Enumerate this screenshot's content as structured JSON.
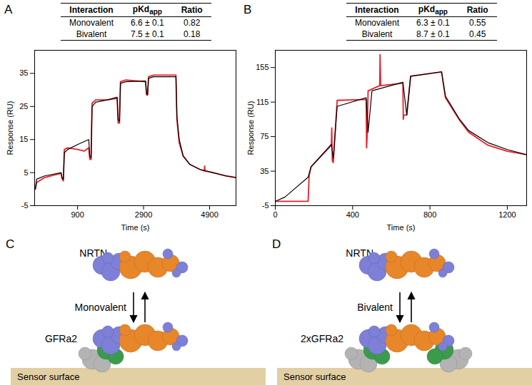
{
  "chart_data": [
    {
      "type": "line",
      "panel": "A",
      "table": {
        "columns": [
          "Interaction",
          {
            "text": "pKd",
            "subscript": "app"
          },
          "Ratio"
        ],
        "rows": [
          [
            "Monovalent",
            "6.6 ± 0.1",
            "0.82"
          ],
          [
            "Bivalent",
            "7.5 ± 0.1",
            "0.18"
          ]
        ]
      },
      "x_label": "Time (s)",
      "y_label": "Response (RU)",
      "xlim": [
        -400,
        5700
      ],
      "xticks": [
        900,
        2900,
        4900
      ],
      "ylim": [
        -5,
        42
      ],
      "yticks": [
        -5,
        5,
        15,
        25,
        35
      ],
      "grid": false,
      "series": [
        {
          "color": "#e8202a",
          "x": [
            -380,
            -340,
            -100,
            200,
            400,
            430,
            470,
            500,
            600,
            900,
            1100,
            1240,
            1270,
            1310,
            1340,
            1450,
            1800,
            2100,
            2130,
            2170,
            2200,
            2350,
            2960,
            2990,
            3020,
            3050,
            3200,
            3880,
            3910,
            3980,
            4100,
            4300,
            4600,
            4740,
            4750,
            4760,
            5000,
            5400,
            5700
          ],
          "values": [
            0,
            2,
            3.5,
            4.3,
            4.8,
            3.2,
            2.5,
            12,
            12.5,
            12,
            11.5,
            12.5,
            9,
            9,
            26,
            27,
            27,
            27.5,
            20,
            20,
            32.5,
            33,
            32.5,
            28.5,
            28.5,
            34,
            34.5,
            34.5,
            21,
            14,
            10,
            7.5,
            6,
            5.5,
            7,
            5.5,
            5,
            4,
            3.5
          ]
        },
        {
          "color": "#000000",
          "x": [
            -380,
            -340,
            -100,
            200,
            400,
            430,
            470,
            500,
            600,
            900,
            1240,
            1270,
            1310,
            1340,
            1450,
            1800,
            2100,
            2130,
            2170,
            2200,
            2350,
            2960,
            2990,
            3020,
            3050,
            3200,
            3880,
            3910,
            3980,
            4100,
            4300,
            4600,
            5000,
            5400,
            5700
          ],
          "values": [
            0,
            3,
            4,
            4.6,
            5,
            3.5,
            3,
            11,
            12,
            13.5,
            15,
            10,
            9.5,
            25,
            26.3,
            27,
            27.8,
            21,
            20.5,
            32,
            32.5,
            32.7,
            29,
            28.5,
            33.5,
            34,
            34,
            22,
            15,
            10,
            7.5,
            6,
            5,
            4,
            3.5
          ]
        }
      ]
    },
    {
      "type": "line",
      "panel": "B",
      "table": {
        "columns": [
          "Interaction",
          {
            "text": "pKd",
            "subscript": "app"
          },
          "Ratio"
        ],
        "rows": [
          [
            "Monovalent",
            "6.3 ± 0.1",
            "0.55"
          ],
          [
            "Bivalent",
            "8.7 ± 0.1",
            "0.45"
          ]
        ]
      },
      "x_label": "Time (s)",
      "y_label": "Response (RU)",
      "xlim": [
        0,
        1300
      ],
      "xticks": [
        0,
        400,
        800,
        1200
      ],
      "ylim": [
        -5,
        175
      ],
      "yticks": [
        -5,
        35,
        75,
        115,
        155
      ],
      "grid": false,
      "series": [
        {
          "color": "#e8202a",
          "x": [
            0,
            170,
            175,
            185,
            290,
            292,
            295,
            300,
            320,
            470,
            472,
            475,
            480,
            540,
            542,
            545,
            660,
            662,
            665,
            680,
            700,
            860,
            880,
            950,
            1000,
            1100,
            1200,
            1300
          ],
          "values": [
            0,
            0,
            30,
            40,
            65,
            85,
            47,
            45,
            117,
            118,
            62,
            75,
            128,
            134,
            170,
            134,
            137,
            95,
            100,
            100,
            145,
            150,
            120,
            95,
            80,
            65,
            58,
            54
          ]
        },
        {
          "color": "#000000",
          "x": [
            0,
            50,
            170,
            185,
            290,
            300,
            320,
            470,
            480,
            500,
            660,
            680,
            700,
            860,
            880,
            950,
            1000,
            1100,
            1200,
            1300
          ],
          "values": [
            0,
            5,
            28,
            40,
            66,
            50,
            110,
            120,
            80,
            128,
            138,
            100,
            145,
            150,
            122,
            96,
            82,
            68,
            60,
            54
          ]
        }
      ]
    }
  ],
  "diagrams": [
    {
      "panel": "C",
      "top_label": "NRTN",
      "arrow_label": "Monovalent",
      "bottom_label": "GFRa2",
      "surface_label": "Sensor surface",
      "bivalent": false
    },
    {
      "panel": "D",
      "top_label": "NRTN",
      "arrow_label": "Bivalent",
      "bottom_label": "2xGFRa2",
      "surface_label": "Sensor surface",
      "bivalent": true
    }
  ]
}
